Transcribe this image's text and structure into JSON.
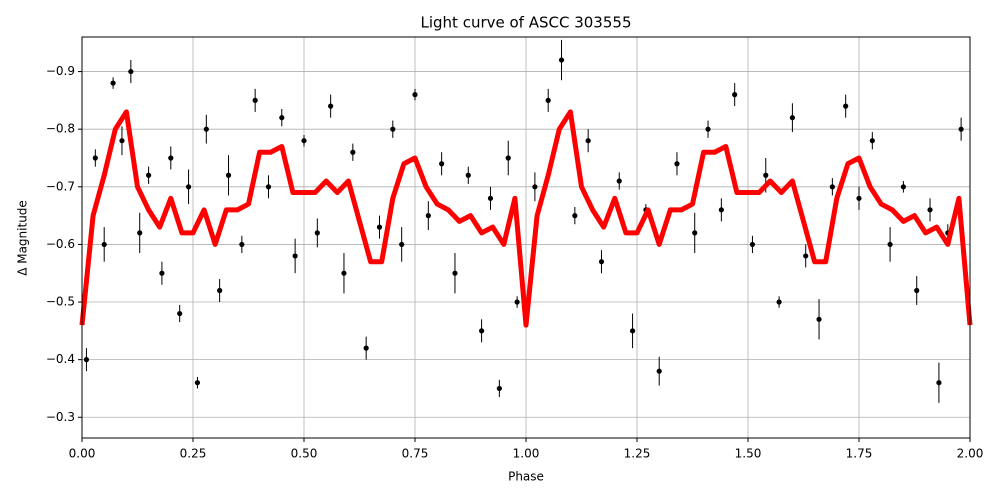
{
  "chart_data": {
    "type": "scatter",
    "title": "Light curve of ASCC 303555",
    "x_label": "Phase",
    "y_label": "Δ Magnitude",
    "xlim": [
      0,
      2
    ],
    "ylim": [
      -0.264,
      -0.96
    ],
    "xticks": [
      {
        "value": 0,
        "label": "0.00"
      },
      {
        "value": 0.25,
        "label": "0.25"
      },
      {
        "value": 0.5,
        "label": "0.50"
      },
      {
        "value": 0.75,
        "label": "0.75"
      },
      {
        "value": 1,
        "label": "1.00"
      },
      {
        "value": 1.25,
        "label": "1.25"
      },
      {
        "value": 1.5,
        "label": "1.50"
      },
      {
        "value": 1.75,
        "label": "1.75"
      },
      {
        "value": 2,
        "label": "2.00"
      }
    ],
    "yticks": [
      {
        "value": -0.9,
        "label": "−0.9"
      },
      {
        "value": -0.8,
        "label": "−0.8"
      },
      {
        "value": -0.7,
        "label": "−0.7"
      },
      {
        "value": -0.6,
        "label": "−0.6"
      },
      {
        "value": -0.5,
        "label": "−0.5"
      },
      {
        "value": -0.4,
        "label": "−0.4"
      },
      {
        "value": -0.3,
        "label": "−0.3"
      }
    ],
    "grid": true,
    "points": {
      "color": "#000000",
      "x": [
        0.01,
        0.03,
        0.05,
        0.07,
        0.09,
        0.11,
        0.13,
        0.15,
        0.18,
        0.2,
        0.22,
        0.24,
        0.26,
        0.28,
        0.31,
        0.33,
        0.36,
        0.39,
        0.42,
        0.45,
        0.48,
        0.5,
        0.53,
        0.56,
        0.59,
        0.61,
        0.64,
        0.67,
        0.7,
        0.72,
        0.75,
        0.78,
        0.81,
        0.84,
        0.87,
        0.9,
        0.92,
        0.94,
        0.96,
        0.98,
        1.02,
        1.05,
        1.08,
        1.11,
        1.14,
        1.17,
        1.21,
        1.24,
        1.27,
        1.3,
        1.34,
        1.38,
        1.41,
        1.44,
        1.47,
        1.51,
        1.54,
        1.57,
        1.6,
        1.63,
        1.66,
        1.69,
        1.72,
        1.75,
        1.78,
        1.82,
        1.85,
        1.88,
        1.91,
        1.93,
        1.95,
        1.98
      ],
      "values": [
        -0.4,
        -0.75,
        -0.6,
        -0.88,
        -0.78,
        -0.9,
        -0.62,
        -0.72,
        -0.55,
        -0.75,
        -0.48,
        -0.7,
        -0.36,
        -0.8,
        -0.52,
        -0.72,
        -0.6,
        -0.85,
        -0.7,
        -0.82,
        -0.58,
        -0.78,
        -0.62,
        -0.84,
        -0.55,
        -0.76,
        -0.42,
        -0.63,
        -0.8,
        -0.6,
        -0.86,
        -0.65,
        -0.74,
        -0.55,
        -0.72,
        -0.45,
        -0.68,
        -0.35,
        -0.75,
        -0.5,
        -0.7,
        -0.85,
        -0.92,
        -0.65,
        -0.78,
        -0.57,
        -0.71,
        -0.45,
        -0.66,
        -0.38,
        -0.74,
        -0.62,
        -0.8,
        -0.66,
        -0.86,
        -0.6,
        -0.72,
        -0.5,
        -0.82,
        -0.58,
        -0.47,
        -0.7,
        -0.84,
        -0.68,
        -0.78,
        -0.6,
        -0.7,
        -0.52,
        -0.66,
        -0.36,
        -0.62,
        -0.8
      ],
      "errors": [
        0.02,
        0.015,
        0.03,
        0.01,
        0.025,
        0.02,
        0.035,
        0.015,
        0.02,
        0.02,
        0.015,
        0.03,
        0.01,
        0.025,
        0.02,
        0.035,
        0.015,
        0.02,
        0.02,
        0.015,
        0.03,
        0.01,
        0.025,
        0.02,
        0.035,
        0.015,
        0.02,
        0.02,
        0.015,
        0.03,
        0.01,
        0.025,
        0.02,
        0.035,
        0.015,
        0.02,
        0.02,
        0.015,
        0.03,
        0.01,
        0.025,
        0.02,
        0.035,
        0.015,
        0.02,
        0.02,
        0.015,
        0.03,
        0.01,
        0.025,
        0.02,
        0.035,
        0.015,
        0.02,
        0.02,
        0.015,
        0.03,
        0.01,
        0.025,
        0.02,
        0.035,
        0.015,
        0.02,
        0.02,
        0.015,
        0.03,
        0.01,
        0.025,
        0.02,
        0.035,
        0.015,
        0.02
      ]
    },
    "curve": {
      "color": "#ff0000",
      "x": [
        0,
        0.025,
        0.05,
        0.075,
        0.1,
        0.125,
        0.15,
        0.175,
        0.2,
        0.225,
        0.25,
        0.275,
        0.3,
        0.325,
        0.35,
        0.375,
        0.4,
        0.425,
        0.45,
        0.475,
        0.5,
        0.525,
        0.55,
        0.575,
        0.6,
        0.625,
        0.65,
        0.675,
        0.7,
        0.725,
        0.75,
        0.775,
        0.8,
        0.825,
        0.85,
        0.875,
        0.9,
        0.925,
        0.95,
        0.975,
        1,
        1.025,
        1.05,
        1.075,
        1.1,
        1.125,
        1.15,
        1.175,
        1.2,
        1.225,
        1.25,
        1.275,
        1.3,
        1.325,
        1.35,
        1.375,
        1.4,
        1.425,
        1.45,
        1.475,
        1.5,
        1.525,
        1.55,
        1.575,
        1.6,
        1.625,
        1.65,
        1.675,
        1.7,
        1.725,
        1.75,
        1.775,
        1.8,
        1.825,
        1.85,
        1.875,
        1.9,
        1.925,
        1.95,
        1.975,
        2
      ],
      "values": [
        -0.46,
        -0.65,
        -0.72,
        -0.8,
        -0.83,
        -0.7,
        -0.66,
        -0.63,
        -0.68,
        -0.62,
        -0.62,
        -0.66,
        -0.6,
        -0.66,
        -0.66,
        -0.67,
        -0.76,
        -0.76,
        -0.77,
        -0.69,
        -0.69,
        -0.69,
        -0.71,
        -0.69,
        -0.71,
        -0.64,
        -0.57,
        -0.57,
        -0.68,
        -0.74,
        -0.75,
        -0.7,
        -0.67,
        -0.66,
        -0.64,
        -0.65,
        -0.62,
        -0.63,
        -0.6,
        -0.68,
        -0.46,
        -0.65,
        -0.72,
        -0.8,
        -0.83,
        -0.7,
        -0.66,
        -0.63,
        -0.68,
        -0.62,
        -0.62,
        -0.66,
        -0.6,
        -0.66,
        -0.66,
        -0.67,
        -0.76,
        -0.76,
        -0.77,
        -0.69,
        -0.69,
        -0.69,
        -0.71,
        -0.69,
        -0.71,
        -0.64,
        -0.57,
        -0.57,
        -0.68,
        -0.74,
        -0.75,
        -0.7,
        -0.67,
        -0.66,
        -0.64,
        -0.65,
        -0.62,
        -0.63,
        -0.6,
        -0.68,
        -0.46
      ]
    }
  }
}
